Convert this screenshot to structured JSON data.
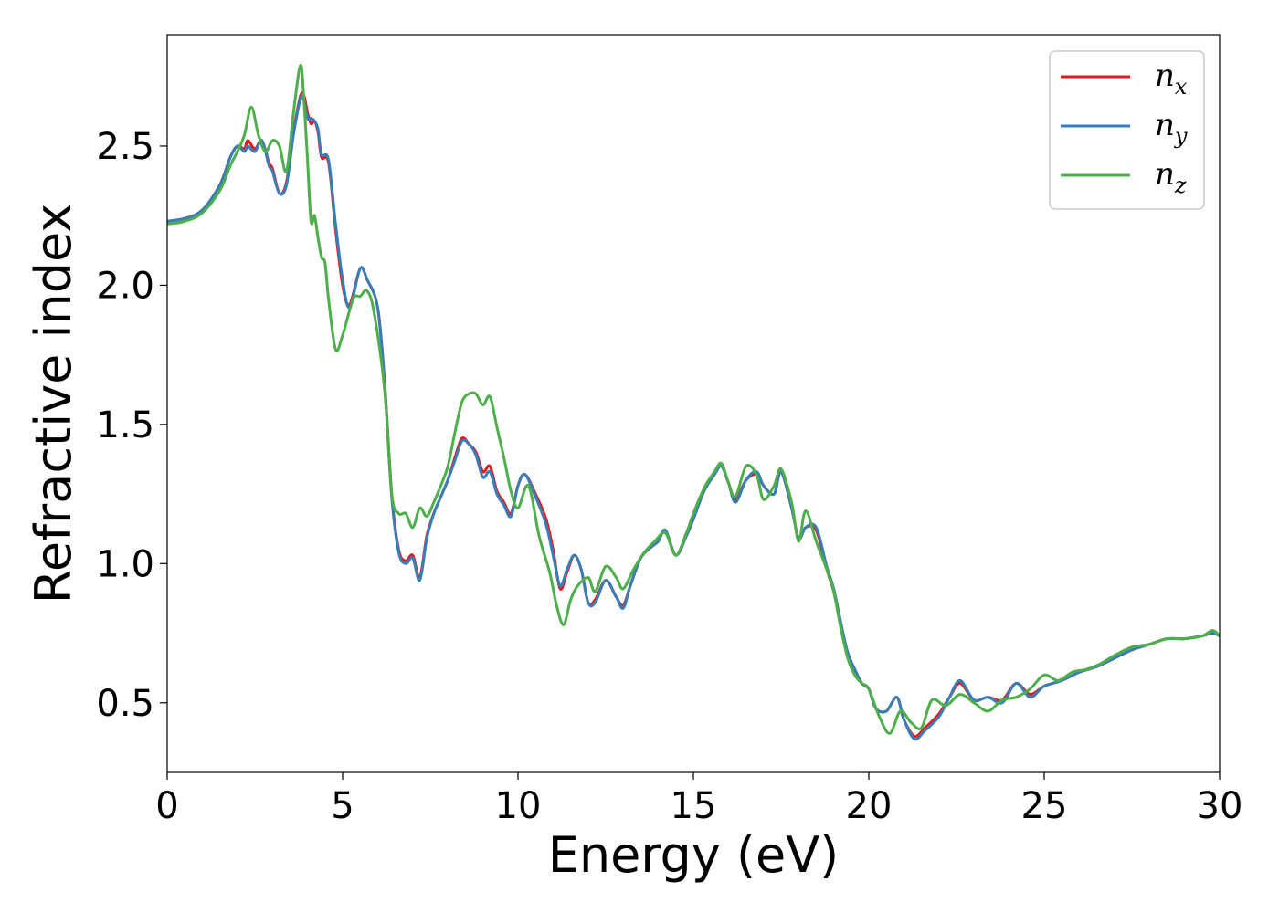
{
  "chart_data": {
    "type": "line",
    "title": "",
    "xlabel": "Energy (eV)",
    "ylabel": "Refractive index",
    "xlim": [
      0,
      30
    ],
    "ylim": [
      0.25,
      2.9
    ],
    "xticks": [
      0,
      5,
      10,
      15,
      20,
      25,
      30
    ],
    "xtick_labels": [
      "0",
      "5",
      "10",
      "15",
      "20",
      "25",
      "30"
    ],
    "yticks": [
      0.5,
      1.0,
      1.5,
      2.0,
      2.5
    ],
    "ytick_labels": [
      "0.5",
      "1.0",
      "1.5",
      "2.0",
      "2.5"
    ],
    "grid": false,
    "legend": {
      "placement": "top-right",
      "entries": [
        {
          "base": "n",
          "sub": "x",
          "color": "#e41a1c"
        },
        {
          "base": "n",
          "sub": "y",
          "color": "#377eb8"
        },
        {
          "base": "n",
          "sub": "z",
          "color": "#4daf4a"
        }
      ]
    },
    "series": [
      {
        "name": "nx",
        "color": "#e41a1c",
        "x": [
          0,
          0.5,
          1.0,
          1.5,
          1.8,
          2.0,
          2.2,
          2.3,
          2.5,
          2.7,
          2.9,
          3.0,
          3.2,
          3.4,
          3.6,
          3.8,
          3.9,
          4.0,
          4.1,
          4.2,
          4.3,
          4.4,
          4.6,
          4.8,
          5.0,
          5.2,
          5.5,
          5.7,
          6.0,
          6.2,
          6.4,
          6.6,
          6.8,
          7.0,
          7.2,
          7.4,
          7.6,
          7.8,
          8.0,
          8.2,
          8.4,
          8.6,
          8.8,
          9.0,
          9.2,
          9.4,
          9.6,
          9.8,
          10.0,
          10.2,
          10.5,
          10.8,
          11.0,
          11.2,
          11.4,
          11.6,
          11.8,
          12.0,
          12.2,
          12.5,
          12.8,
          13.0,
          13.2,
          13.5,
          13.8,
          14.0,
          14.2,
          14.5,
          14.8,
          15.0,
          15.3,
          15.6,
          15.8,
          16.0,
          16.2,
          16.5,
          16.8,
          17.0,
          17.3,
          17.5,
          17.8,
          18.0,
          18.2,
          18.5,
          18.8,
          19.0,
          19.2,
          19.4,
          19.6,
          19.8,
          20.0,
          20.2,
          20.5,
          20.8,
          21.0,
          21.3,
          21.6,
          22.0,
          22.3,
          22.6,
          23.0,
          23.4,
          23.8,
          24.2,
          24.6,
          25.0,
          25.5,
          26.0,
          26.5,
          27.0,
          27.5,
          28.0,
          28.5,
          29.0,
          29.5,
          29.8,
          30.0
        ],
        "y": [
          2.23,
          2.24,
          2.27,
          2.36,
          2.46,
          2.5,
          2.49,
          2.52,
          2.49,
          2.52,
          2.44,
          2.42,
          2.33,
          2.37,
          2.55,
          2.68,
          2.68,
          2.62,
          2.58,
          2.59,
          2.55,
          2.46,
          2.44,
          2.2,
          2.0,
          1.93,
          2.06,
          2.02,
          1.92,
          1.65,
          1.25,
          1.05,
          1.01,
          1.03,
          0.95,
          1.1,
          1.18,
          1.24,
          1.3,
          1.38,
          1.45,
          1.43,
          1.4,
          1.33,
          1.35,
          1.26,
          1.22,
          1.18,
          1.28,
          1.32,
          1.25,
          1.16,
          1.05,
          0.91,
          0.97,
          1.03,
          0.98,
          0.86,
          0.87,
          0.94,
          0.88,
          0.85,
          0.92,
          1.02,
          1.06,
          1.08,
          1.12,
          1.03,
          1.1,
          1.16,
          1.26,
          1.32,
          1.35,
          1.29,
          1.23,
          1.3,
          1.32,
          1.28,
          1.25,
          1.33,
          1.2,
          1.09,
          1.13,
          1.12,
          0.98,
          0.9,
          0.78,
          0.68,
          0.62,
          0.57,
          0.55,
          0.48,
          0.47,
          0.52,
          0.44,
          0.38,
          0.41,
          0.46,
          0.52,
          0.57,
          0.51,
          0.52,
          0.51,
          0.57,
          0.53,
          0.56,
          0.58,
          0.61,
          0.63,
          0.66,
          0.69,
          0.71,
          0.73,
          0.73,
          0.74,
          0.75,
          0.74
        ]
      },
      {
        "name": "ny",
        "color": "#377eb8",
        "x": [
          0,
          0.5,
          1.0,
          1.5,
          1.8,
          2.0,
          2.2,
          2.3,
          2.5,
          2.7,
          2.9,
          3.0,
          3.2,
          3.4,
          3.6,
          3.8,
          3.9,
          4.0,
          4.1,
          4.2,
          4.3,
          4.4,
          4.6,
          4.8,
          5.0,
          5.2,
          5.5,
          5.7,
          6.0,
          6.2,
          6.4,
          6.6,
          6.8,
          7.0,
          7.2,
          7.4,
          7.6,
          7.8,
          8.0,
          8.2,
          8.4,
          8.6,
          8.8,
          9.0,
          9.2,
          9.4,
          9.6,
          9.8,
          10.0,
          10.2,
          10.5,
          10.8,
          11.0,
          11.2,
          11.4,
          11.6,
          11.8,
          12.0,
          12.2,
          12.5,
          12.8,
          13.0,
          13.2,
          13.5,
          13.8,
          14.0,
          14.2,
          14.5,
          14.8,
          15.0,
          15.3,
          15.6,
          15.8,
          16.0,
          16.2,
          16.5,
          16.8,
          17.0,
          17.3,
          17.5,
          17.8,
          18.0,
          18.2,
          18.5,
          18.8,
          19.0,
          19.2,
          19.4,
          19.6,
          19.8,
          20.0,
          20.2,
          20.5,
          20.8,
          21.0,
          21.3,
          21.6,
          22.0,
          22.3,
          22.6,
          23.0,
          23.4,
          23.8,
          24.2,
          24.6,
          25.0,
          25.5,
          26.0,
          26.5,
          27.0,
          27.5,
          28.0,
          28.5,
          29.0,
          29.5,
          29.8,
          30.0
        ],
        "y": [
          2.23,
          2.24,
          2.27,
          2.36,
          2.46,
          2.5,
          2.48,
          2.5,
          2.48,
          2.52,
          2.43,
          2.41,
          2.33,
          2.36,
          2.54,
          2.67,
          2.66,
          2.6,
          2.6,
          2.59,
          2.56,
          2.47,
          2.45,
          2.22,
          2.02,
          1.92,
          2.06,
          2.02,
          1.92,
          1.64,
          1.24,
          1.04,
          1.0,
          1.02,
          0.94,
          1.09,
          1.18,
          1.24,
          1.3,
          1.37,
          1.44,
          1.43,
          1.39,
          1.31,
          1.33,
          1.25,
          1.21,
          1.17,
          1.28,
          1.32,
          1.24,
          1.14,
          1.03,
          0.92,
          0.98,
          1.03,
          0.98,
          0.86,
          0.86,
          0.94,
          0.88,
          0.84,
          0.92,
          1.02,
          1.06,
          1.08,
          1.12,
          1.03,
          1.1,
          1.16,
          1.26,
          1.32,
          1.35,
          1.29,
          1.22,
          1.3,
          1.33,
          1.28,
          1.25,
          1.33,
          1.2,
          1.09,
          1.13,
          1.13,
          0.99,
          0.91,
          0.79,
          0.68,
          0.62,
          0.57,
          0.55,
          0.48,
          0.47,
          0.52,
          0.44,
          0.37,
          0.4,
          0.45,
          0.52,
          0.58,
          0.51,
          0.52,
          0.5,
          0.57,
          0.52,
          0.56,
          0.58,
          0.61,
          0.63,
          0.66,
          0.69,
          0.71,
          0.73,
          0.73,
          0.74,
          0.75,
          0.74
        ]
      },
      {
        "name": "nz",
        "color": "#4daf4a",
        "x": [
          0,
          0.5,
          1.0,
          1.5,
          1.8,
          2.0,
          2.2,
          2.4,
          2.6,
          2.8,
          3.0,
          3.2,
          3.4,
          3.6,
          3.8,
          3.9,
          4.0,
          4.1,
          4.2,
          4.3,
          4.4,
          4.5,
          4.6,
          4.8,
          5.0,
          5.3,
          5.5,
          5.7,
          5.9,
          6.2,
          6.4,
          6.6,
          6.8,
          7.0,
          7.2,
          7.4,
          7.6,
          7.8,
          8.0,
          8.2,
          8.4,
          8.6,
          8.8,
          9.0,
          9.2,
          9.4,
          9.6,
          9.8,
          10.0,
          10.3,
          10.6,
          10.9,
          11.1,
          11.3,
          11.5,
          11.7,
          12.0,
          12.2,
          12.5,
          12.8,
          13.0,
          13.3,
          13.6,
          13.9,
          14.2,
          14.5,
          14.8,
          15.0,
          15.3,
          15.6,
          15.8,
          16.0,
          16.2,
          16.5,
          16.8,
          17.0,
          17.3,
          17.5,
          17.8,
          18.0,
          18.2,
          18.5,
          18.8,
          19.0,
          19.2,
          19.4,
          19.6,
          19.8,
          20.0,
          20.3,
          20.6,
          20.9,
          21.2,
          21.5,
          21.8,
          22.2,
          22.6,
          23.0,
          23.4,
          23.8,
          24.2,
          24.6,
          25.0,
          25.4,
          25.8,
          26.2,
          26.6,
          27.0,
          27.5,
          28.0,
          28.5,
          29.0,
          29.5,
          29.8,
          30.0
        ],
        "y": [
          2.22,
          2.23,
          2.26,
          2.34,
          2.43,
          2.48,
          2.54,
          2.64,
          2.54,
          2.48,
          2.52,
          2.5,
          2.41,
          2.62,
          2.79,
          2.66,
          2.45,
          2.23,
          2.25,
          2.17,
          2.1,
          2.08,
          1.95,
          1.77,
          1.82,
          1.95,
          1.96,
          1.98,
          1.9,
          1.62,
          1.25,
          1.18,
          1.18,
          1.13,
          1.2,
          1.17,
          1.22,
          1.28,
          1.35,
          1.47,
          1.58,
          1.61,
          1.61,
          1.57,
          1.6,
          1.49,
          1.38,
          1.26,
          1.2,
          1.28,
          1.1,
          0.97,
          0.85,
          0.78,
          0.87,
          0.92,
          0.95,
          0.9,
          0.99,
          0.95,
          0.91,
          0.98,
          1.04,
          1.08,
          1.11,
          1.03,
          1.11,
          1.18,
          1.27,
          1.33,
          1.36,
          1.29,
          1.24,
          1.35,
          1.32,
          1.23,
          1.28,
          1.34,
          1.22,
          1.08,
          1.19,
          1.08,
          0.98,
          0.9,
          0.77,
          0.66,
          0.6,
          0.57,
          0.55,
          0.45,
          0.39,
          0.47,
          0.43,
          0.41,
          0.51,
          0.49,
          0.53,
          0.5,
          0.47,
          0.51,
          0.52,
          0.55,
          0.6,
          0.58,
          0.61,
          0.62,
          0.64,
          0.67,
          0.7,
          0.71,
          0.73,
          0.73,
          0.74,
          0.76,
          0.74
        ]
      }
    ]
  }
}
